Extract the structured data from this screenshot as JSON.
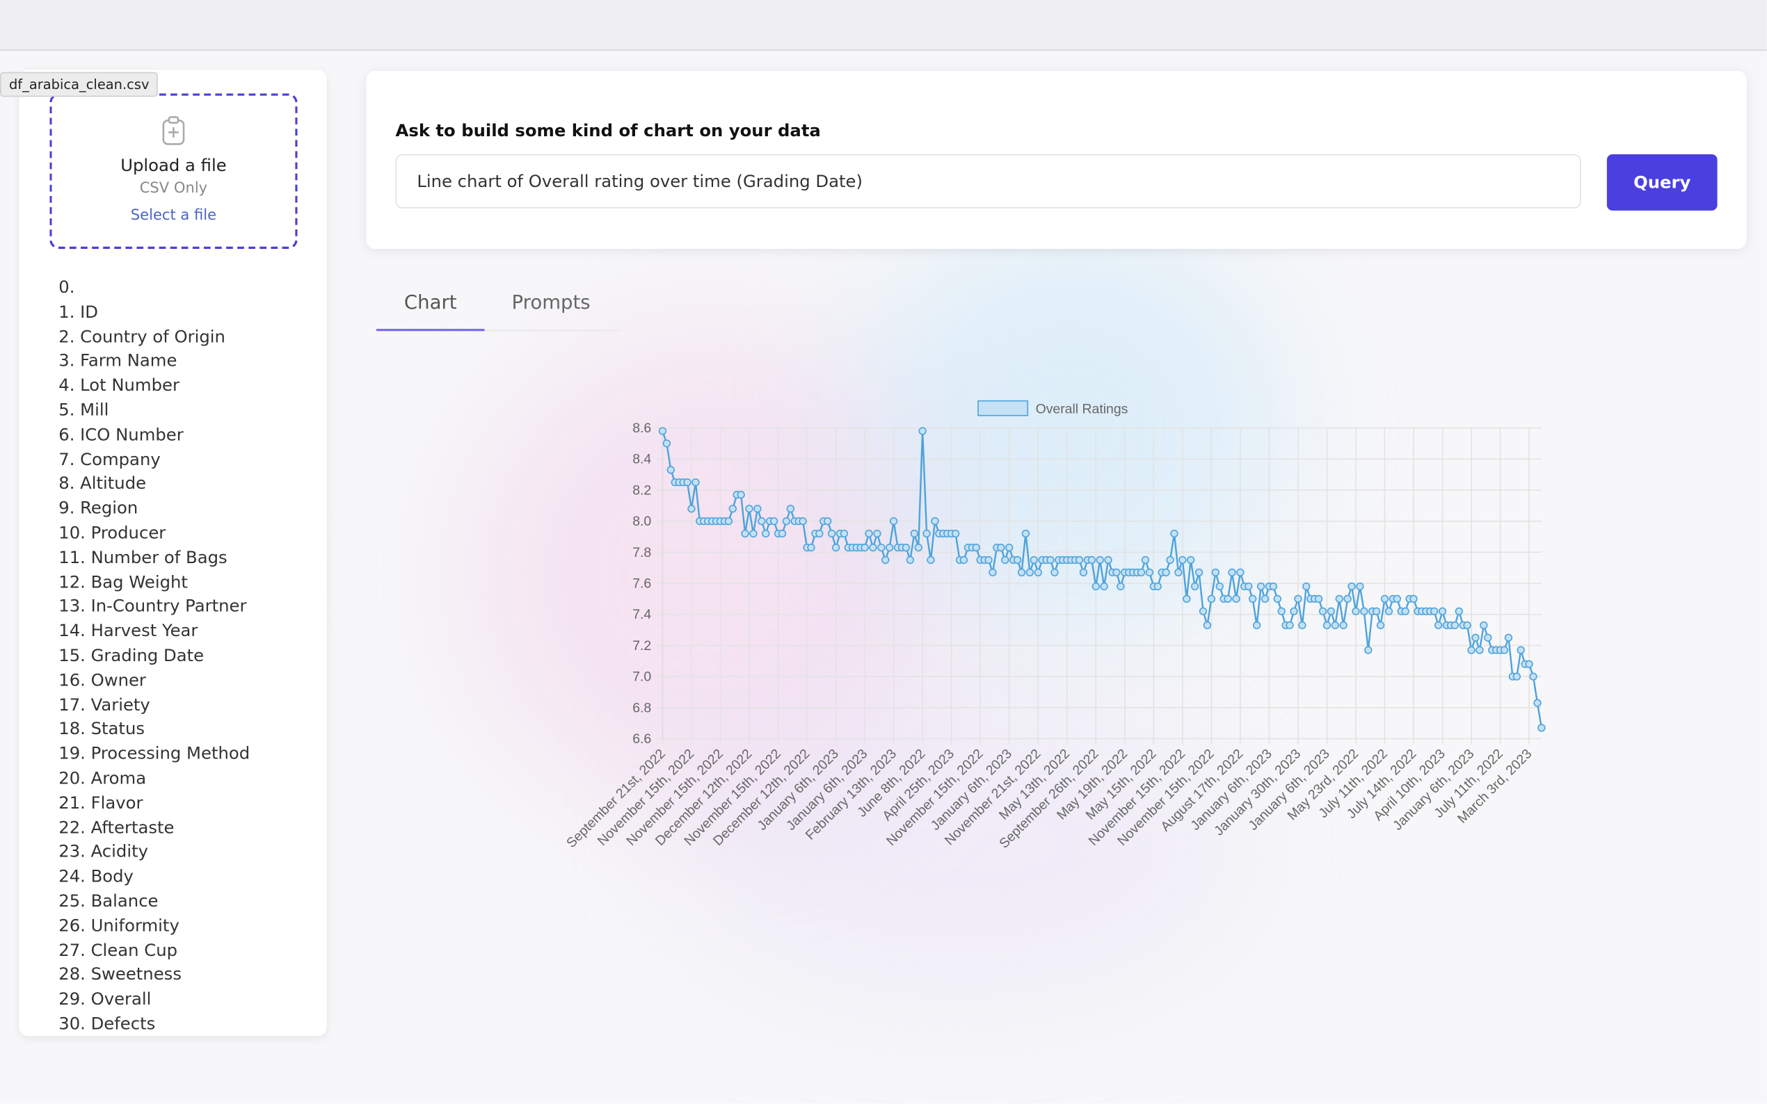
{
  "file_tooltip": "df_arabica_clean.csv",
  "upload": {
    "title": "Upload a file",
    "hint": "CSV Only",
    "link": "Select a file"
  },
  "columns": [
    "0.",
    "1. ID",
    "2. Country of Origin",
    "3. Farm Name",
    "4. Lot Number",
    "5. Mill",
    "6. ICO Number",
    "7. Company",
    "8. Altitude",
    "9. Region",
    "10. Producer",
    "11. Number of Bags",
    "12. Bag Weight",
    "13. In-Country Partner",
    "14. Harvest Year",
    "15. Grading Date",
    "16. Owner",
    "17. Variety",
    "18. Status",
    "19. Processing Method",
    "20. Aroma",
    "21. Flavor",
    "22. Aftertaste",
    "23. Acidity",
    "24. Body",
    "25. Balance",
    "26. Uniformity",
    "27. Clean Cup",
    "28. Sweetness",
    "29. Overall",
    "30. Defects"
  ],
  "query": {
    "label": "Ask to build some kind of chart on your data",
    "input": "Line chart of Overall rating over time (Grading Date)",
    "button": "Query"
  },
  "tabs": [
    "Chart",
    "Prompts"
  ],
  "chart_data": {
    "type": "line",
    "categories": [
      "September 21st, 2022",
      null,
      null,
      null,
      null,
      null,
      null,
      "November 15th, 2022",
      null,
      null,
      null,
      null,
      null,
      null,
      "November 15th, 2022",
      null,
      null,
      null,
      null,
      null,
      null,
      "December 12th, 2022",
      null,
      null,
      null,
      null,
      null,
      null,
      "November 15th, 2022",
      null,
      null,
      null,
      null,
      null,
      null,
      "December 12th, 2022",
      null,
      null,
      null,
      null,
      null,
      null,
      "January 6th, 2023",
      null,
      null,
      null,
      null,
      null,
      null,
      "January 6th, 2023",
      null,
      null,
      null,
      null,
      null,
      null,
      "February 13th, 2023",
      null,
      null,
      null,
      null,
      null,
      null,
      "June 8th, 2022",
      null,
      null,
      null,
      null,
      null,
      null,
      "April 25th, 2023",
      null,
      null,
      null,
      null,
      null,
      null,
      "November 15th, 2022",
      null,
      null,
      null,
      null,
      null,
      null,
      "January 6th, 2023",
      null,
      null,
      null,
      null,
      null,
      null,
      "November 21st, 2022",
      null,
      null,
      null,
      null,
      null,
      null,
      "May 13th, 2022",
      null,
      null,
      null,
      null,
      null,
      null,
      "September 26th, 2022",
      null,
      null,
      null,
      null,
      null,
      null,
      "May 19th, 2022",
      null,
      null,
      null,
      null,
      null,
      null,
      "May 15th, 2022",
      null,
      null,
      null,
      null,
      null,
      null,
      "November 15th, 2022",
      null,
      null,
      null,
      null,
      null,
      null,
      "November 15th, 2022",
      null,
      null,
      null,
      null,
      null,
      null,
      "August 17th, 2022",
      null,
      null,
      null,
      null,
      null,
      null,
      "January 6th, 2023",
      null,
      null,
      null,
      null,
      null,
      null,
      "January 30th, 2023",
      null,
      null,
      null,
      null,
      null,
      null,
      "January 6th, 2023",
      null,
      null,
      null,
      null,
      null,
      null,
      "May 23rd, 2022",
      null,
      null,
      null,
      null,
      null,
      null,
      "July 11th, 2022",
      null,
      null,
      null,
      null,
      null,
      null,
      "July 14th, 2022",
      null,
      null,
      null,
      null,
      null,
      null,
      "April 10th, 2023",
      null,
      null,
      null,
      null,
      null,
      null,
      "January 6th, 2023",
      null,
      null,
      null,
      null,
      null,
      null,
      "July 11th, 2022",
      null,
      null,
      null,
      null,
      null,
      null,
      "March 3rd, 2023",
      null,
      null,
      null
    ],
    "series": [
      {
        "name": "Overall Ratings",
        "color": "#4ea3dc",
        "fill": "#c5e1f5",
        "values": [
          8.58,
          8.5,
          8.33,
          8.25,
          8.25,
          8.25,
          8.25,
          8.08,
          8.25,
          8.0,
          8.0,
          8.0,
          8.0,
          8.0,
          8.0,
          8.0,
          8.0,
          8.08,
          8.17,
          8.17,
          7.92,
          8.08,
          7.92,
          8.08,
          8.0,
          7.92,
          8.0,
          8.0,
          7.92,
          7.92,
          8.0,
          8.08,
          8.0,
          8.0,
          8.0,
          7.83,
          7.83,
          7.92,
          7.92,
          8.0,
          8.0,
          7.92,
          7.83,
          7.92,
          7.92,
          7.83,
          7.83,
          7.83,
          7.83,
          7.83,
          7.92,
          7.83,
          7.92,
          7.83,
          7.75,
          7.83,
          8.0,
          7.83,
          7.83,
          7.83,
          7.75,
          7.92,
          7.83,
          8.58,
          7.92,
          7.75,
          8.0,
          7.92,
          7.92,
          7.92,
          7.92,
          7.92,
          7.75,
          7.75,
          7.83,
          7.83,
          7.83,
          7.75,
          7.75,
          7.75,
          7.67,
          7.83,
          7.83,
          7.75,
          7.83,
          7.75,
          7.75,
          7.67,
          7.92,
          7.67,
          7.75,
          7.67,
          7.75,
          7.75,
          7.75,
          7.67,
          7.75,
          7.75,
          7.75,
          7.75,
          7.75,
          7.75,
          7.67,
          7.75,
          7.75,
          7.58,
          7.75,
          7.58,
          7.75,
          7.67,
          7.67,
          7.58,
          7.67,
          7.67,
          7.67,
          7.67,
          7.67,
          7.75,
          7.67,
          7.58,
          7.58,
          7.67,
          7.67,
          7.75,
          7.92,
          7.67,
          7.75,
          7.5,
          7.75,
          7.58,
          7.67,
          7.42,
          7.33,
          7.5,
          7.67,
          7.58,
          7.5,
          7.5,
          7.67,
          7.5,
          7.67,
          7.58,
          7.58,
          7.5,
          7.33,
          7.58,
          7.5,
          7.58,
          7.58,
          7.5,
          7.42,
          7.33,
          7.33,
          7.42,
          7.5,
          7.33,
          7.58,
          7.5,
          7.5,
          7.5,
          7.42,
          7.33,
          7.42,
          7.33,
          7.5,
          7.33,
          7.5,
          7.58,
          7.42,
          7.58,
          7.42,
          7.17,
          7.42,
          7.42,
          7.33,
          7.5,
          7.42,
          7.5,
          7.5,
          7.42,
          7.42,
          7.5,
          7.5,
          7.42,
          7.42,
          7.42,
          7.42,
          7.42,
          7.33,
          7.42,
          7.33,
          7.33,
          7.33,
          7.42,
          7.33,
          7.33,
          7.17,
          7.25,
          7.17,
          7.33,
          7.25,
          7.17,
          7.17,
          7.17,
          7.17,
          7.25,
          7.0,
          7.0,
          7.17,
          7.08,
          7.08,
          7.0,
          6.83,
          6.67
        ]
      }
    ],
    "ylim": [
      6.6,
      8.6
    ],
    "yticks": [
      6.6,
      6.8,
      {
        "value": 7,
        "label": "7.0"
      },
      7.2,
      7.4,
      7.6,
      7.8,
      {
        "value": 8,
        "label": "8.0"
      },
      8.2,
      8.4,
      8.6
    ],
    "grid": true,
    "legend": "top"
  }
}
